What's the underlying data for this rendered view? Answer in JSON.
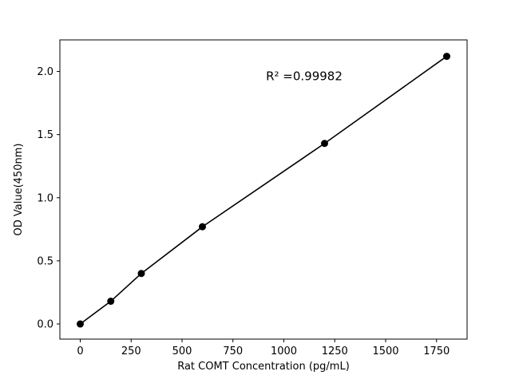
{
  "chart_data": {
    "type": "scatter",
    "x": [
      0,
      150,
      300,
      600,
      1200,
      1800
    ],
    "y": [
      0.0,
      0.18,
      0.4,
      0.77,
      1.43,
      2.12
    ],
    "title": "",
    "xlabel": "Rat COMT Concentration (pg/mL)",
    "ylabel": "OD Value(450nm)",
    "annotation": "R² =0.99982",
    "annotation_pos": {
      "x_frac": 0.6,
      "y_frac": 0.135
    },
    "xlim": [
      -100,
      1900
    ],
    "ylim": [
      -0.12,
      2.25
    ],
    "xticks": [
      0,
      250,
      500,
      750,
      1000,
      1250,
      1500,
      1750
    ],
    "xtick_labels": [
      "0",
      "250",
      "500",
      "750",
      "1000",
      "1250",
      "1500",
      "1750"
    ],
    "yticks": [
      0.0,
      0.5,
      1.0,
      1.5,
      2.0
    ],
    "ytick_labels": [
      "0.0",
      "0.5",
      "1.0",
      "1.5",
      "2.0"
    ],
    "grid": false,
    "line": true,
    "line_color": "#000000",
    "marker_color": "#000000",
    "background": "#ffffff",
    "legend": null
  }
}
